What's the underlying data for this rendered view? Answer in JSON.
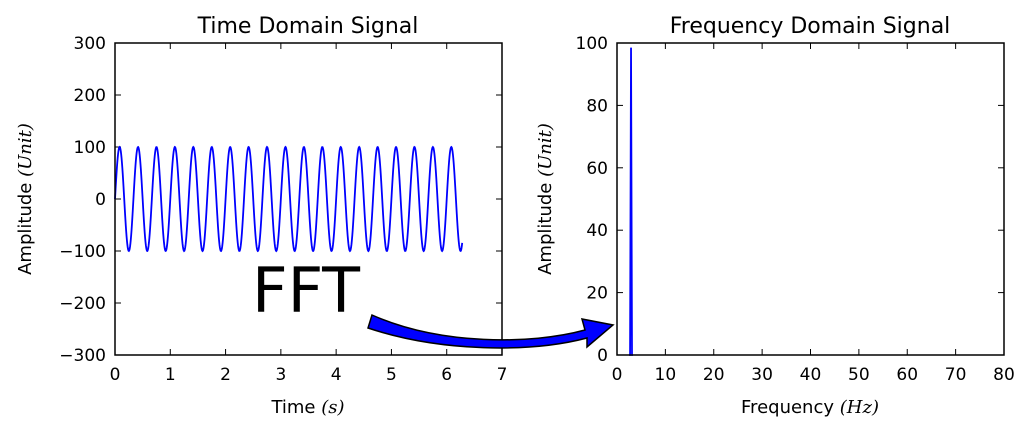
{
  "colors": {
    "series": "#0000ff",
    "arrow_fill": "#0000ff",
    "arrow_edge": "#000000",
    "axes": "#000000"
  },
  "annotation": {
    "text": "FFT",
    "arrow": "curved arrow from time-domain panel to frequency-domain panel"
  },
  "chart_data": [
    {
      "type": "line",
      "title": "Time Domain Signal",
      "xlabel_text": "Time ",
      "xlabel_unit": "(s)",
      "ylabel_text": "Amplitude ",
      "ylabel_unit": "(Unit)",
      "xlim": [
        0,
        7
      ],
      "ylim": [
        -300,
        300
      ],
      "xticks": [
        "0",
        "1",
        "2",
        "3",
        "4",
        "5",
        "6",
        "7"
      ],
      "yticks": [
        "300",
        "200",
        "100",
        "0",
        "−100",
        "−200",
        "−300"
      ],
      "grid": false,
      "series": [
        {
          "function": "sine",
          "amplitude": 100,
          "frequency_hz": 3,
          "phase_deg": 0,
          "x_start": 0,
          "x_end": 6.28
        }
      ]
    },
    {
      "type": "line",
      "title": "Frequency Domain Signal",
      "xlabel_text": "Frequency ",
      "xlabel_unit": "(Hz)",
      "ylabel_text": "Amplitude ",
      "ylabel_unit": "(Unit)",
      "xlim": [
        0,
        80
      ],
      "ylim": [
        0,
        100
      ],
      "xticks": [
        "0",
        "10",
        "20",
        "30",
        "40",
        "50",
        "60",
        "70",
        "80"
      ],
      "yticks": [
        "100",
        "80",
        "60",
        "40",
        "20",
        "0"
      ],
      "grid": false,
      "series": [
        {
          "x": [
            2.5,
            2.7,
            2.9,
            3.1,
            3.3
          ],
          "y": [
            0,
            0,
            98.5,
            0,
            0
          ]
        }
      ]
    }
  ]
}
